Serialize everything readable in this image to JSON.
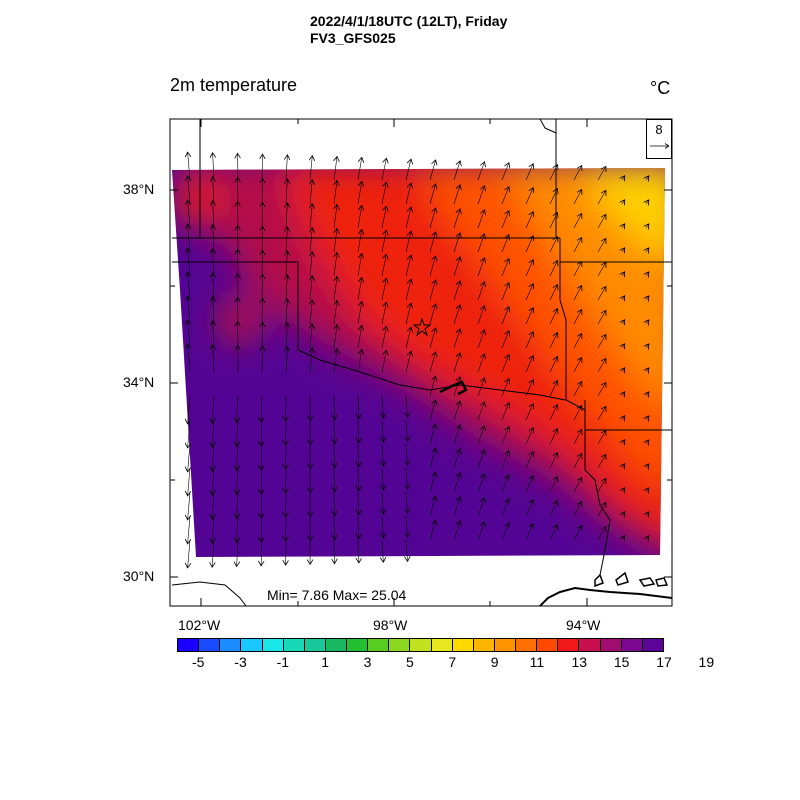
{
  "header": {
    "title_line1": "2022/4/1/18UTC (12LT), Friday",
    "title_line2": "FV3_GFS025"
  },
  "variable_label": "2m temperature",
  "unit_label": "°C",
  "min_max_text": "Min= 7.86 Max= 25.04",
  "vector_reference": {
    "value": "8"
  },
  "lat_labels": [
    "38°N",
    "34°N",
    "30°N"
  ],
  "lon_labels": [
    "102°W",
    "98°W",
    "94°W"
  ],
  "colorbar": {
    "colors": [
      "#1a00ff",
      "#1a4cff",
      "#1a8cff",
      "#18c8ff",
      "#1ae8e8",
      "#18d8b8",
      "#18c898",
      "#18b860",
      "#20c030",
      "#58cc20",
      "#8cd820",
      "#c0e020",
      "#e8e820",
      "#ffd800",
      "#ffb400",
      "#ff9400",
      "#ff7000",
      "#ff4800",
      "#f01818",
      "#c81050",
      "#a00c70",
      "#7a0890",
      "#5a0498"
    ],
    "tick_labels": [
      "-5",
      "-3",
      "-1",
      "1",
      "3",
      "5",
      "7",
      "9",
      "11",
      "13",
      "15",
      "17",
      "19"
    ]
  },
  "field_colors": {
    "cold": "#540494",
    "cool": "#6a0a8c",
    "mid": "#b41048",
    "red": "#ee2010",
    "warm": "#ff5200",
    "orange": "#ff8c00",
    "yellow": "#ffd000"
  },
  "location_marker": "star-icon"
}
